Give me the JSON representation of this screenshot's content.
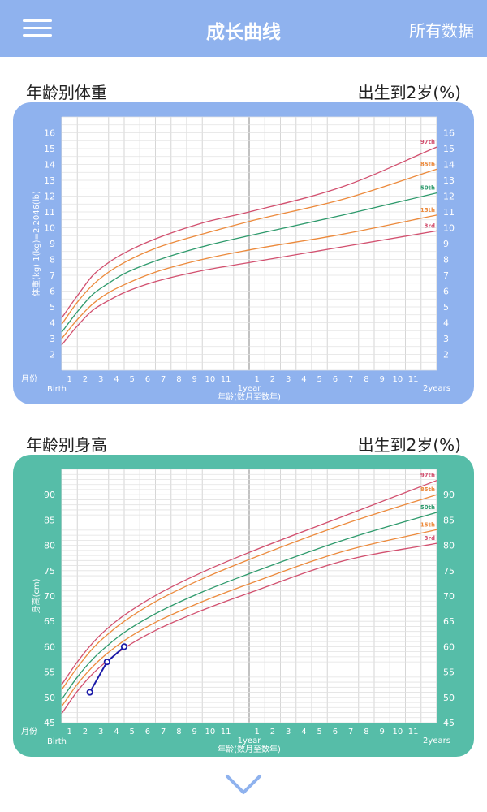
{
  "header": {
    "title": "成长曲线",
    "right_action": "所有数据",
    "menu_icon": "hamburger-menu-icon"
  },
  "sections": [
    {
      "title": "年龄别体重",
      "range": "出生到2岁(%)"
    },
    {
      "title": "年龄别身高",
      "range": "出生到2岁(%)"
    }
  ],
  "colors": {
    "header": "#8fb2ee",
    "weight_card": "#8fb2ee",
    "height_card": "#56bda8",
    "p97": "#d2506f",
    "p85": "#ec8a3c",
    "p50": "#2e9a6c",
    "p15": "#ec8a3c",
    "p3": "#d2506f",
    "child": "#1a1aa8"
  },
  "chart_data": [
    {
      "type": "line",
      "title": "年龄别体重",
      "ylabel": "体重(kg) 1(kg)=2.2046(lb)",
      "xlabel": "年龄(数月至数年)",
      "x_unit_label": "月份",
      "x_tick_labels": [
        "Birth",
        "1",
        "2",
        "3",
        "4",
        "5",
        "6",
        "7",
        "8",
        "9",
        "10",
        "11",
        "1year",
        "1",
        "2",
        "3",
        "4",
        "5",
        "6",
        "7",
        "8",
        "9",
        "10",
        "11",
        "2years"
      ],
      "ylim": [
        1,
        17
      ],
      "y_ticks": [
        2,
        3,
        4,
        5,
        6,
        7,
        8,
        9,
        10,
        11,
        12,
        13,
        14,
        15,
        16
      ],
      "xlim": [
        0,
        24
      ],
      "grid": true,
      "x": [
        0,
        1,
        2,
        3,
        4,
        6,
        9,
        12,
        18,
        24
      ],
      "series": [
        {
          "name": "97th",
          "values": [
            4.3,
            5.7,
            7.0,
            7.8,
            8.4,
            9.3,
            10.3,
            11.0,
            12.6,
            15.1
          ]
        },
        {
          "name": "85th",
          "values": [
            3.9,
            5.3,
            6.4,
            7.2,
            7.8,
            8.7,
            9.6,
            10.4,
            11.8,
            13.7
          ]
        },
        {
          "name": "50th",
          "values": [
            3.4,
            4.7,
            5.8,
            6.5,
            7.1,
            7.9,
            8.8,
            9.5,
            10.8,
            12.2
          ]
        },
        {
          "name": "15th",
          "values": [
            3.0,
            4.2,
            5.2,
            5.9,
            6.4,
            7.2,
            8.0,
            8.6,
            9.6,
            10.8
          ]
        },
        {
          "name": "3rd",
          "values": [
            2.6,
            3.8,
            4.8,
            5.4,
            5.9,
            6.6,
            7.3,
            7.8,
            8.8,
            9.8
          ]
        }
      ]
    },
    {
      "type": "line",
      "title": "年龄别身高",
      "ylabel": "身高(cm)",
      "xlabel": "年龄(数月至数年)",
      "x_unit_label": "月份",
      "x_tick_labels": [
        "Birth",
        "1",
        "2",
        "3",
        "4",
        "5",
        "6",
        "7",
        "8",
        "9",
        "10",
        "11",
        "1year",
        "1",
        "2",
        "3",
        "4",
        "5",
        "6",
        "7",
        "8",
        "9",
        "10",
        "11",
        "2years"
      ],
      "ylim": [
        45,
        95
      ],
      "y_ticks": [
        45,
        50,
        55,
        60,
        65,
        70,
        75,
        80,
        85,
        90
      ],
      "xlim": [
        0,
        24
      ],
      "grid": true,
      "x": [
        0,
        1,
        2,
        3,
        4,
        6,
        9,
        12,
        18,
        24
      ],
      "series": [
        {
          "name": "97th",
          "values": [
            52.5,
            57.0,
            60.8,
            63.8,
            66.2,
            70.1,
            74.7,
            78.6,
            85.7,
            92.8
          ]
        },
        {
          "name": "85th",
          "values": [
            51.5,
            55.9,
            59.7,
            62.6,
            65.0,
            68.9,
            73.4,
            77.2,
            84.1,
            90.0
          ]
        },
        {
          "name": "50th",
          "values": [
            49.6,
            54.0,
            57.6,
            60.4,
            62.8,
            66.5,
            70.8,
            74.4,
            81.0,
            86.5
          ]
        },
        {
          "name": "15th",
          "values": [
            48.2,
            52.6,
            56.1,
            58.9,
            61.2,
            64.8,
            68.9,
            72.4,
            78.8,
            83.1
          ]
        },
        {
          "name": "3rd",
          "values": [
            46.8,
            51.2,
            54.7,
            57.4,
            59.7,
            63.2,
            67.2,
            70.6,
            76.9,
            80.4
          ]
        }
      ],
      "child_points": [
        {
          "x": 1.8,
          "y": 51
        },
        {
          "x": 2.9,
          "y": 57
        },
        {
          "x": 4.0,
          "y": 60
        }
      ]
    }
  ]
}
